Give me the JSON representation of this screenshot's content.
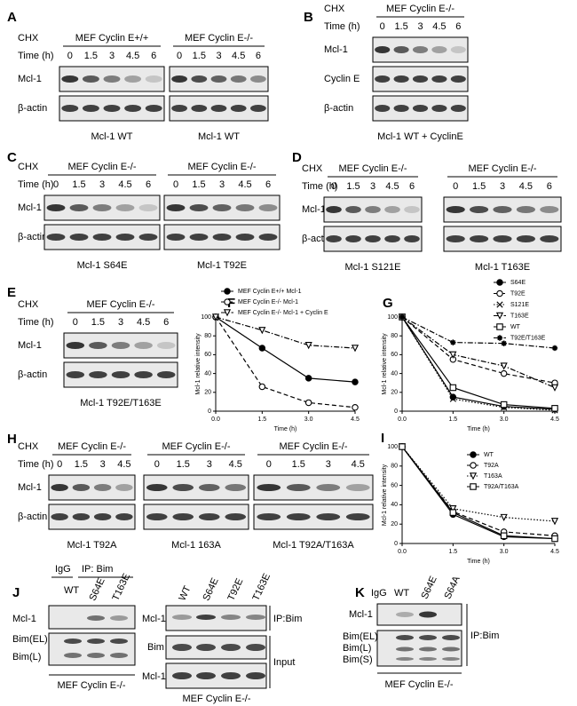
{
  "panels": {
    "A": {
      "label": "A",
      "chx": "CHX",
      "time": "Time  (h)",
      "rows": [
        "Mcl-1",
        "β-actin"
      ],
      "groups": [
        {
          "title": "MEF Cyclin  E+/+",
          "lanes": [
            "0",
            "1.5",
            "3",
            "4.5",
            "6"
          ],
          "caption": "Mcl-1  WT"
        },
        {
          "title": "MEF Cyclin E-/-",
          "lanes": [
            "0",
            "1.5",
            "3",
            "4.5",
            "6"
          ],
          "caption": "Mcl-1  WT"
        }
      ]
    },
    "B": {
      "label": "B",
      "chx": "CHX",
      "time": "Time  (h)",
      "rows": [
        "Mcl-1",
        "Cyclin E",
        "β-actin"
      ],
      "groups": [
        {
          "title": "MEF Cyclin E-/-",
          "lanes": [
            "0",
            "1.5",
            "3",
            "4.5",
            "6"
          ],
          "caption": "Mcl-1  WT  +  CyclinE"
        }
      ]
    },
    "C": {
      "label": "C",
      "chx": "CHX",
      "time": "Time  (h)",
      "rows": [
        "Mcl-1",
        "β-actin"
      ],
      "groups": [
        {
          "title": "MEF Cyclin E-/-",
          "lanes": [
            "0",
            "1.5",
            "3",
            "4.5",
            "6"
          ],
          "caption": "Mcl-1  S64E"
        },
        {
          "title": "MEF Cyclin E-/-",
          "lanes": [
            "0",
            "1.5",
            "3",
            "4.5",
            "6"
          ],
          "caption": "Mcl-1  T92E"
        }
      ]
    },
    "D": {
      "label": "D",
      "chx": "CHX",
      "time": "Time  (h)",
      "rows": [
        "Mcl-1",
        "β-actin"
      ],
      "groups": [
        {
          "title": "MEF   Cyclin  E-/-",
          "lanes": [
            "0",
            "1.5",
            "3",
            "4.5",
            "6"
          ],
          "caption": "Mcl-1  S121E"
        },
        {
          "title": "MEF   Cyclin  E-/-",
          "lanes": [
            "0",
            "1.5",
            "3",
            "4.5",
            "6"
          ],
          "caption": "Mcl-1  T163E"
        }
      ]
    },
    "E": {
      "label": "E",
      "chx": "CHX",
      "time": "Time  (h)",
      "rows": [
        "Mcl-1",
        "β-actin"
      ],
      "groups": [
        {
          "title": "MEF Cyclin E-/-",
          "lanes": [
            "0",
            "1.5",
            "3",
            "4.5",
            "6"
          ],
          "caption": "Mcl-1  T92E/T163E"
        }
      ]
    },
    "H": {
      "label": "H",
      "chx": "CHX",
      "time": "Time  (h)",
      "rows": [
        "Mcl-1",
        "β-actin"
      ],
      "groups": [
        {
          "title": "MEF Cyclin E-/-",
          "lanes": [
            "0",
            "1.5",
            "3",
            "4.5"
          ],
          "caption": "Mcl-1  T92A"
        },
        {
          "title": "MEF Cyclin E-/-",
          "lanes": [
            "0",
            "1.5",
            "3",
            "4.5"
          ],
          "caption": "Mcl-1  163A"
        },
        {
          "title": "MEF Cyclin E-/-",
          "lanes": [
            "0",
            "1.5",
            "3",
            "4.5"
          ],
          "caption": "Mcl-1  T92A/T163A"
        }
      ]
    },
    "J": {
      "label": "J",
      "igg": "IgG",
      "ip": "IP:  Bim",
      "lanes_left": [
        "WT",
        "S64E",
        "T163E"
      ],
      "rows_left": [
        "Mcl-1",
        "Bim(EL)",
        "Bim(L)"
      ],
      "caption_left": "MEF Cyclin E-/-",
      "lanes_right": [
        "WT",
        "S64E",
        "T92E",
        "T163E"
      ],
      "rows_right": [
        "Mcl-1",
        "Bim",
        "Mcl-1"
      ],
      "ip_right": "IP:Bim",
      "input": "Input",
      "caption_right": "MEF Cyclin E-/-"
    },
    "K": {
      "label": "K",
      "lanes": [
        "IgG",
        "WT",
        "S64E",
        "S64A"
      ],
      "rows": [
        "Mcl-1",
        "Bim(EL)",
        "Bim(L)",
        "Bim(S)"
      ],
      "ip": "IP:Bim",
      "caption": "MEF Cyclin E-/-"
    }
  },
  "chart_data": [
    {
      "type": "line",
      "panel_label": "F",
      "xlabel": "Time (h)",
      "ylabel": "Mcl-1 relative intensity",
      "legend": "top",
      "x": [
        0,
        1.5,
        3,
        4.5
      ],
      "xlim": [
        0,
        4.5
      ],
      "xticks": [
        {
          "value": 0,
          "label": "0.0"
        },
        1.5,
        {
          "value": 3,
          "label": "3.0"
        },
        4.5
      ],
      "ylim": [
        0,
        100
      ],
      "yticks": [
        0,
        20,
        40,
        60,
        80,
        100
      ],
      "series": [
        {
          "name": "MEF Cyclin E+/+ Mcl-1",
          "color": "#000000",
          "marker": "filled-circle",
          "line": "solid",
          "values": [
            100,
            67,
            35,
            31
          ]
        },
        {
          "name": "MEF Cyclin E-/- Mcl-1",
          "color": "#000000",
          "marker": "open-circle",
          "line": "dashed",
          "values": [
            100,
            26,
            9,
            4
          ]
        },
        {
          "name": "MEF Cyclin E-/- Mcl-1 + Cyclin E",
          "color": "#000000",
          "marker": "open-triangle",
          "line": "dashdot",
          "values": [
            100,
            86,
            70,
            67
          ]
        }
      ]
    },
    {
      "type": "line",
      "panel_label": "G",
      "xlabel": "Time (h)",
      "ylabel": "Mcl-1 relative intensity",
      "legend": "top right",
      "x": [
        0,
        1.5,
        3,
        4.5
      ],
      "xlim": [
        0,
        4.5
      ],
      "xticks": [
        {
          "value": 0,
          "label": "0.0"
        },
        1.5,
        {
          "value": 3,
          "label": "3.0"
        },
        4.5
      ],
      "ylim": [
        0,
        100
      ],
      "yticks": [
        0,
        20,
        40,
        60,
        80,
        100
      ],
      "series": [
        {
          "name": "S64E",
          "color": "#000000",
          "marker": "filled-circle",
          "line": "solid",
          "values": [
            100,
            15,
            5,
            2
          ]
        },
        {
          "name": "T92E",
          "color": "#000000",
          "marker": "open-circle",
          "line": "dashed",
          "values": [
            100,
            55,
            40,
            30
          ]
        },
        {
          "name": "S121E",
          "color": "#000000",
          "marker": "x",
          "line": "dotted",
          "values": [
            100,
            13,
            4,
            1
          ]
        },
        {
          "name": "T163E",
          "color": "#000000",
          "marker": "open-triangle",
          "line": "dashdot",
          "values": [
            100,
            60,
            48,
            25
          ]
        },
        {
          "name": "WT",
          "color": "#000000",
          "marker": "open-square",
          "line": "solid",
          "values": [
            100,
            25,
            7,
            3
          ]
        },
        {
          "name": "T92E/T163E",
          "color": "#000000",
          "marker": "star",
          "line": "dashdot",
          "values": [
            100,
            73,
            72,
            67
          ]
        }
      ]
    },
    {
      "type": "line",
      "panel_label": "I",
      "xlabel": "Time (h)",
      "ylabel": "Mcl-1 relative intensity",
      "legend": "right",
      "x": [
        0,
        1.5,
        3,
        4.5
      ],
      "xlim": [
        0,
        4.5
      ],
      "xticks": [
        {
          "value": 0,
          "label": "0.0"
        },
        1.5,
        {
          "value": 3,
          "label": "3.0"
        },
        4.5
      ],
      "ylim": [
        0,
        100
      ],
      "yticks": [
        0,
        20,
        40,
        60,
        80,
        100
      ],
      "series": [
        {
          "name": "WT",
          "color": "#000000",
          "marker": "filled-circle",
          "line": "solid",
          "values": [
            100,
            30,
            7,
            5
          ]
        },
        {
          "name": "T92A",
          "color": "#000000",
          "marker": "open-circle",
          "line": "dashed",
          "values": [
            100,
            33,
            12,
            8
          ]
        },
        {
          "name": "T163A",
          "color": "#000000",
          "marker": "open-triangle",
          "line": "dotted",
          "values": [
            100,
            36,
            27,
            23
          ]
        },
        {
          "name": "T92A/T163A",
          "color": "#000000",
          "marker": "open-square",
          "line": "solid",
          "values": [
            100,
            32,
            8,
            5
          ]
        }
      ]
    }
  ]
}
